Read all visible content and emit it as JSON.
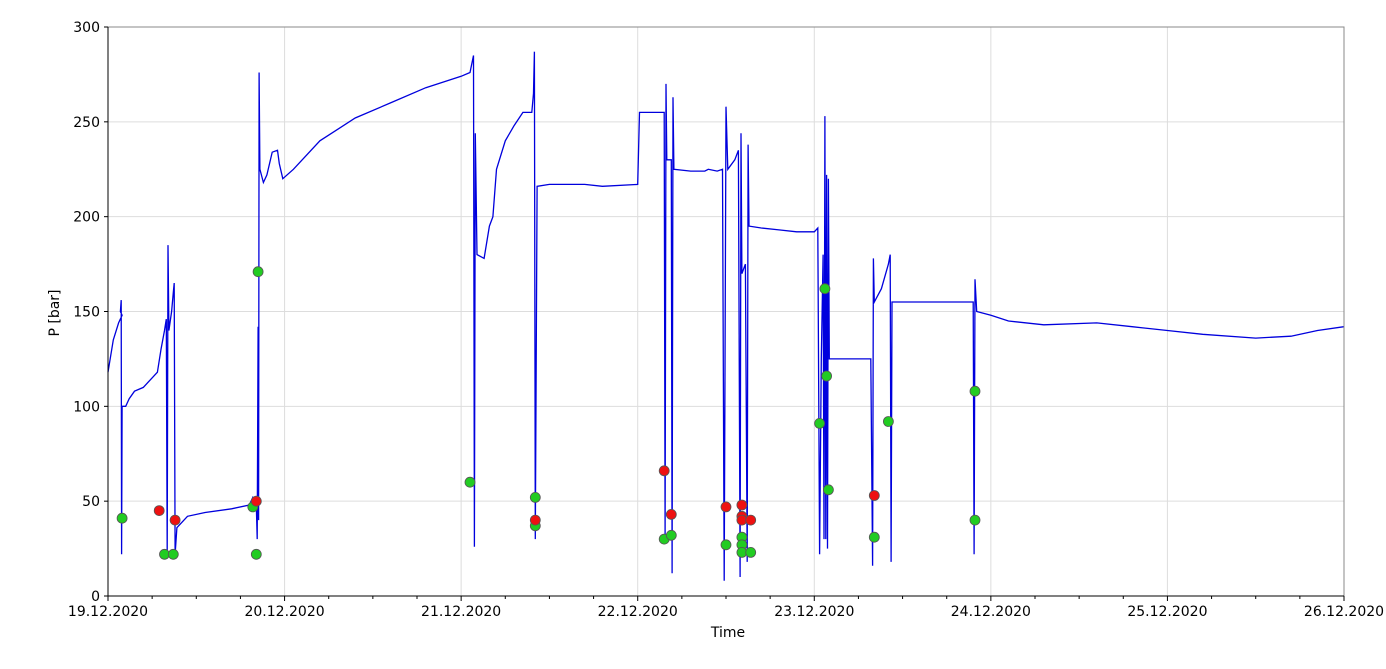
{
  "chart_data": {
    "type": "line",
    "title": "",
    "xlabel": "Time",
    "ylabel": "P [bar]",
    "xlim": [
      "19.12.2020 00:00",
      "26.12.2020 00:00"
    ],
    "ylim": [
      0,
      300
    ],
    "yticks": [
      0,
      50,
      100,
      150,
      200,
      250,
      300
    ],
    "xticks": [
      "19.12.2020",
      "20.12.2020",
      "21.12.2020",
      "22.12.2020",
      "23.12.2020",
      "24.12.2020",
      "25.12.2020",
      "26.12.2020"
    ],
    "grid": true,
    "legend": "none",
    "colors": {
      "line": "#0000dd",
      "ok_point": "#22cc22",
      "alarm_point": "#ee1111",
      "grid": "#dddddd",
      "axis": "#000000"
    },
    "series": [
      {
        "kind": "line",
        "comment": "x in days since 19.12.2020 00:00 (axis dates), y in bar",
        "points": [
          [
            0.0,
            118
          ],
          [
            0.03,
            135
          ],
          [
            0.06,
            144
          ],
          [
            0.08,
            148
          ],
          [
            0.07,
            150
          ],
          [
            0.075,
            156
          ],
          [
            0.077,
            22
          ],
          [
            0.08,
            100
          ],
          [
            0.1,
            100
          ],
          [
            0.12,
            104
          ],
          [
            0.15,
            108
          ],
          [
            0.2,
            110
          ],
          [
            0.25,
            115
          ],
          [
            0.28,
            118
          ],
          [
            0.3,
            130
          ],
          [
            0.32,
            140
          ],
          [
            0.33,
            146
          ],
          [
            0.335,
            22
          ],
          [
            0.34,
            185
          ],
          [
            0.345,
            140
          ],
          [
            0.36,
            150
          ],
          [
            0.37,
            160
          ],
          [
            0.375,
            165
          ],
          [
            0.38,
            22
          ],
          [
            0.39,
            36
          ],
          [
            0.45,
            42
          ],
          [
            0.55,
            44
          ],
          [
            0.7,
            46
          ],
          [
            0.8,
            48
          ],
          [
            0.82,
            52
          ],
          [
            0.84,
            48
          ],
          [
            0.845,
            30
          ],
          [
            0.85,
            142
          ],
          [
            0.853,
            40
          ],
          [
            0.856,
            276
          ],
          [
            0.86,
            225
          ],
          [
            0.88,
            218
          ],
          [
            0.9,
            222
          ],
          [
            0.93,
            234
          ],
          [
            0.96,
            235
          ],
          [
            0.97,
            228
          ],
          [
            0.99,
            220
          ],
          [
            1.05,
            225
          ],
          [
            1.2,
            240
          ],
          [
            1.4,
            252
          ],
          [
            1.6,
            260
          ],
          [
            1.8,
            268
          ],
          [
            2.0,
            274
          ],
          [
            2.05,
            276
          ],
          [
            2.07,
            285
          ],
          [
            2.075,
            26
          ],
          [
            2.08,
            244
          ],
          [
            2.09,
            180
          ],
          [
            2.13,
            178
          ],
          [
            2.16,
            195
          ],
          [
            2.18,
            200
          ],
          [
            2.2,
            225
          ],
          [
            2.25,
            240
          ],
          [
            2.3,
            248
          ],
          [
            2.35,
            255
          ],
          [
            2.4,
            255
          ],
          [
            2.41,
            265
          ],
          [
            2.415,
            287
          ],
          [
            2.42,
            30
          ],
          [
            2.43,
            216
          ],
          [
            2.5,
            217
          ],
          [
            2.7,
            217
          ],
          [
            2.8,
            216
          ],
          [
            3.0,
            217
          ],
          [
            3.01,
            255
          ],
          [
            3.15,
            255
          ],
          [
            3.155,
            30
          ],
          [
            3.16,
            270
          ],
          [
            3.165,
            230
          ],
          [
            3.19,
            230
          ],
          [
            3.195,
            12
          ],
          [
            3.2,
            263
          ],
          [
            3.205,
            225
          ],
          [
            3.3,
            224
          ],
          [
            3.38,
            224
          ],
          [
            3.4,
            225
          ],
          [
            3.45,
            224
          ],
          [
            3.48,
            225
          ],
          [
            3.49,
            8
          ],
          [
            3.5,
            258
          ],
          [
            3.51,
            225
          ],
          [
            3.55,
            230
          ],
          [
            3.57,
            235
          ],
          [
            3.58,
            10
          ],
          [
            3.585,
            244
          ],
          [
            3.59,
            170
          ],
          [
            3.61,
            175
          ],
          [
            3.62,
            18
          ],
          [
            3.625,
            238
          ],
          [
            3.63,
            195
          ],
          [
            3.7,
            194
          ],
          [
            3.8,
            193
          ],
          [
            3.9,
            192
          ],
          [
            4.0,
            192
          ],
          [
            4.02,
            194
          ],
          [
            4.03,
            22
          ],
          [
            4.04,
            125
          ],
          [
            4.05,
            180
          ],
          [
            4.055,
            30
          ],
          [
            4.06,
            253
          ],
          [
            4.065,
            30
          ],
          [
            4.07,
            222
          ],
          [
            4.075,
            25
          ],
          [
            4.08,
            220
          ],
          [
            4.085,
            125
          ],
          [
            4.2,
            125
          ],
          [
            4.32,
            125
          ],
          [
            4.33,
            16
          ],
          [
            4.335,
            178
          ],
          [
            4.34,
            155
          ],
          [
            4.38,
            162
          ],
          [
            4.42,
            175
          ],
          [
            4.43,
            180
          ],
          [
            4.435,
            18
          ],
          [
            4.44,
            155
          ],
          [
            4.5,
            155
          ],
          [
            4.6,
            155
          ],
          [
            4.7,
            155
          ],
          [
            4.8,
            155
          ],
          [
            4.9,
            155
          ],
          [
            4.905,
            22
          ],
          [
            4.91,
            167
          ],
          [
            4.92,
            150
          ],
          [
            5.0,
            148
          ],
          [
            5.1,
            145
          ],
          [
            5.3,
            143
          ],
          [
            5.6,
            144
          ],
          [
            5.8,
            142
          ],
          [
            6.0,
            140
          ],
          [
            6.2,
            138
          ],
          [
            6.5,
            136
          ],
          [
            6.7,
            137
          ],
          [
            6.85,
            140
          ],
          [
            7.0,
            142
          ]
        ]
      },
      {
        "kind": "points",
        "name": "",
        "color_key": "ok_point",
        "points": [
          [
            0.08,
            41
          ],
          [
            0.32,
            22
          ],
          [
            0.37,
            22
          ],
          [
            0.82,
            47
          ],
          [
            0.84,
            22
          ],
          [
            0.85,
            171
          ],
          [
            2.05,
            60
          ],
          [
            2.42,
            37
          ],
          [
            2.42,
            52
          ],
          [
            3.15,
            30
          ],
          [
            3.19,
            32
          ],
          [
            3.5,
            27
          ],
          [
            3.59,
            31
          ],
          [
            3.59,
            27
          ],
          [
            3.59,
            23
          ],
          [
            3.64,
            23
          ],
          [
            4.03,
            91
          ],
          [
            4.06,
            162
          ],
          [
            4.07,
            116
          ],
          [
            4.08,
            56
          ],
          [
            4.34,
            31
          ],
          [
            4.42,
            92
          ],
          [
            4.91,
            108
          ],
          [
            4.91,
            40
          ]
        ]
      },
      {
        "kind": "points",
        "name": "",
        "color_key": "alarm_point",
        "points": [
          [
            0.29,
            45
          ],
          [
            0.38,
            40
          ],
          [
            0.84,
            50
          ],
          [
            2.42,
            40
          ],
          [
            3.15,
            66
          ],
          [
            3.19,
            43
          ],
          [
            3.5,
            47
          ],
          [
            3.59,
            48
          ],
          [
            3.59,
            42
          ],
          [
            3.59,
            40
          ],
          [
            3.64,
            40
          ],
          [
            4.34,
            53
          ]
        ]
      }
    ]
  }
}
